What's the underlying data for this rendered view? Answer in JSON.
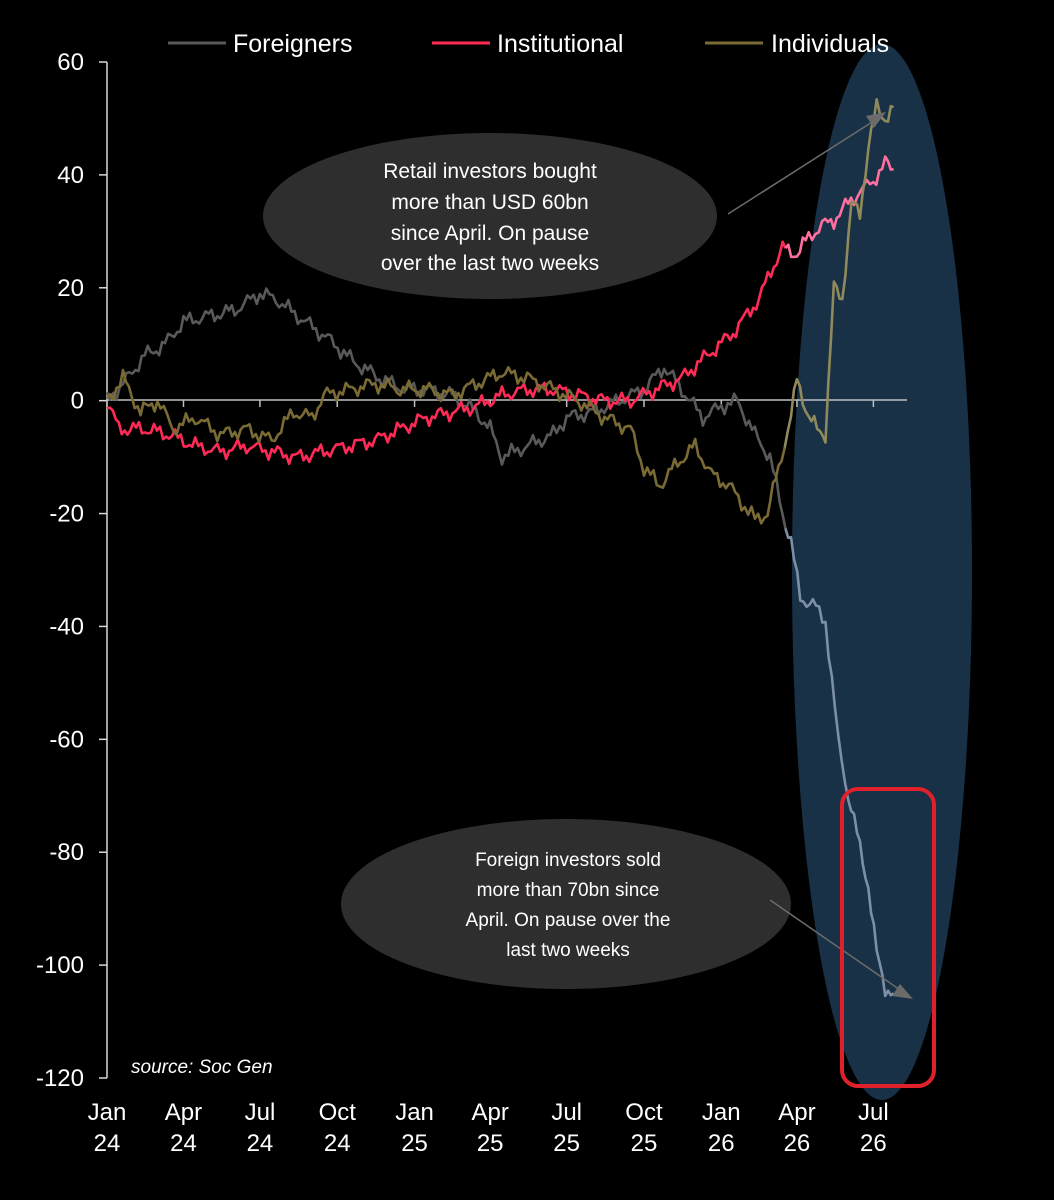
{
  "legend": [
    {
      "label": "Foreigners",
      "color": "#595959"
    },
    {
      "label": "Institutional",
      "color": "#ff2a55"
    },
    {
      "label": "Individuals",
      "color": "#7a6a34"
    }
  ],
  "annotations": {
    "retail": [
      "Retail investors bought",
      "more than USD 60bn",
      "since April. On pause",
      "over the last two weeks"
    ],
    "foreign": [
      "Foreign investors sold",
      "more than 70bn since",
      "April. On pause over the",
      "last two weeks"
    ]
  },
  "source": "source: Soc Gen",
  "colors": {
    "background": "#000000",
    "highlight_ellipse": "#1c3a52",
    "highlight_box": "#e0202a",
    "axis": "#d9d9d9",
    "zero_line": "#bfbfbf",
    "callout": "#2e2e2e"
  },
  "chart_data": {
    "type": "line",
    "x_ticks": [
      {
        "top": "Jan",
        "bottom": "24"
      },
      {
        "top": "Apr",
        "bottom": "24"
      },
      {
        "top": "Jul",
        "bottom": "24"
      },
      {
        "top": "Oct",
        "bottom": "24"
      },
      {
        "top": "Jan",
        "bottom": "25"
      },
      {
        "top": "Apr",
        "bottom": "25"
      },
      {
        "top": "Jul",
        "bottom": "25"
      },
      {
        "top": "Oct",
        "bottom": "25"
      },
      {
        "top": "Jan",
        "bottom": "26"
      },
      {
        "top": "Apr",
        "bottom": "26"
      },
      {
        "top": "Jul",
        "bottom": "26"
      }
    ],
    "y_ticks": [
      60,
      40,
      20,
      0,
      -20,
      -40,
      -60,
      -80,
      -100,
      -120
    ],
    "ylim": [
      -120,
      60
    ],
    "xlim": [
      "2024-01-01",
      "2026-08-10"
    ],
    "grid": false,
    "legend_position": "top",
    "series": [
      {
        "name": "Foreigners",
        "points": [
          [
            "2024-01-01",
            0
          ],
          [
            "2024-01-20",
            3
          ],
          [
            "2024-02-15",
            8
          ],
          [
            "2024-03-10",
            10
          ],
          [
            "2024-04-01",
            14
          ],
          [
            "2024-05-01",
            15
          ],
          [
            "2024-06-01",
            16
          ],
          [
            "2024-07-01",
            19
          ],
          [
            "2024-07-20",
            18
          ],
          [
            "2024-08-15",
            15
          ],
          [
            "2024-09-20",
            11
          ],
          [
            "2024-10-20",
            7
          ],
          [
            "2024-11-20",
            4
          ],
          [
            "2024-12-20",
            2
          ],
          [
            "2025-01-15",
            2
          ],
          [
            "2025-02-15",
            1
          ],
          [
            "2025-03-15",
            -2
          ],
          [
            "2025-04-01",
            -5
          ],
          [
            "2025-04-15",
            -10
          ],
          [
            "2025-05-15",
            -8
          ],
          [
            "2025-06-15",
            -6
          ],
          [
            "2025-07-01",
            -3
          ],
          [
            "2025-08-01",
            -2
          ],
          [
            "2025-09-01",
            0
          ],
          [
            "2025-10-01",
            2
          ],
          [
            "2025-10-25",
            6
          ],
          [
            "2025-11-15",
            2
          ],
          [
            "2025-12-10",
            -3
          ],
          [
            "2026-01-01",
            -1
          ],
          [
            "2026-01-20",
            0
          ],
          [
            "2026-02-10",
            -6
          ],
          [
            "2026-02-28",
            -10
          ],
          [
            "2026-03-15",
            -20
          ],
          [
            "2026-03-25",
            -25
          ],
          [
            "2026-04-05",
            -35
          ],
          [
            "2026-04-20",
            -36
          ],
          [
            "2026-05-05",
            -39
          ],
          [
            "2026-05-20",
            -60
          ],
          [
            "2026-06-01",
            -70
          ],
          [
            "2026-06-15",
            -79
          ],
          [
            "2026-06-25",
            -86
          ],
          [
            "2026-07-05",
            -98
          ],
          [
            "2026-07-15",
            -104
          ],
          [
            "2026-07-25",
            -105
          ]
        ]
      },
      {
        "name": "Institutional",
        "points": [
          [
            "2024-01-01",
            0
          ],
          [
            "2024-01-15",
            -5
          ],
          [
            "2024-02-15",
            -5
          ],
          [
            "2024-03-15",
            -6
          ],
          [
            "2024-04-15",
            -8
          ],
          [
            "2024-05-15",
            -9
          ],
          [
            "2024-06-15",
            -8
          ],
          [
            "2024-07-15",
            -9
          ],
          [
            "2024-08-15",
            -10
          ],
          [
            "2024-09-15",
            -9
          ],
          [
            "2024-10-15",
            -8
          ],
          [
            "2024-11-15",
            -7
          ],
          [
            "2024-12-15",
            -5
          ],
          [
            "2025-01-15",
            -3
          ],
          [
            "2025-02-15",
            -2
          ],
          [
            "2025-03-15",
            -1
          ],
          [
            "2025-04-15",
            1
          ],
          [
            "2025-05-15",
            2
          ],
          [
            "2025-06-15",
            2
          ],
          [
            "2025-07-15",
            1
          ],
          [
            "2025-08-15",
            0
          ],
          [
            "2025-09-15",
            0
          ],
          [
            "2025-10-15",
            2
          ],
          [
            "2025-11-15",
            4
          ],
          [
            "2025-12-15",
            8
          ],
          [
            "2026-01-15",
            12
          ],
          [
            "2026-02-15",
            18
          ],
          [
            "2026-03-01",
            23
          ],
          [
            "2026-03-15",
            27
          ],
          [
            "2026-04-01",
            26
          ],
          [
            "2026-04-15",
            29
          ],
          [
            "2026-05-01",
            31
          ],
          [
            "2026-05-15",
            32
          ],
          [
            "2026-06-01",
            35
          ],
          [
            "2026-06-15",
            37
          ],
          [
            "2026-07-01",
            39
          ],
          [
            "2026-07-15",
            42
          ],
          [
            "2026-07-25",
            41
          ]
        ]
      },
      {
        "name": "Individuals",
        "points": [
          [
            "2024-01-01",
            0
          ],
          [
            "2024-01-20",
            4
          ],
          [
            "2024-02-10",
            -2
          ],
          [
            "2024-03-01",
            0
          ],
          [
            "2024-03-20",
            -5
          ],
          [
            "2024-04-15",
            -3
          ],
          [
            "2024-05-15",
            -6
          ],
          [
            "2024-06-15",
            -5
          ],
          [
            "2024-07-15",
            -7
          ],
          [
            "2024-08-10",
            -2
          ],
          [
            "2024-09-01",
            -3
          ],
          [
            "2024-09-15",
            1
          ],
          [
            "2024-10-15",
            2
          ],
          [
            "2024-11-15",
            3
          ],
          [
            "2024-12-15",
            2
          ],
          [
            "2025-01-15",
            2
          ],
          [
            "2025-02-15",
            1
          ],
          [
            "2025-03-15",
            3
          ],
          [
            "2025-04-15",
            5
          ],
          [
            "2025-05-15",
            4
          ],
          [
            "2025-06-15",
            2
          ],
          [
            "2025-07-15",
            0
          ],
          [
            "2025-08-15",
            -3
          ],
          [
            "2025-09-15",
            -5
          ],
          [
            "2025-10-01",
            -12
          ],
          [
            "2025-10-20",
            -15
          ],
          [
            "2025-11-10",
            -11
          ],
          [
            "2025-12-01",
            -8
          ],
          [
            "2025-12-20",
            -13
          ],
          [
            "2026-01-10",
            -15
          ],
          [
            "2026-01-25",
            -18
          ],
          [
            "2026-02-10",
            -21
          ],
          [
            "2026-02-25",
            -20
          ],
          [
            "2026-03-10",
            -12
          ],
          [
            "2026-03-25",
            -3
          ],
          [
            "2026-04-01",
            4
          ],
          [
            "2026-04-15",
            -3
          ],
          [
            "2026-04-25",
            -5
          ],
          [
            "2026-05-05",
            -6
          ],
          [
            "2026-05-15",
            20
          ],
          [
            "2026-05-25",
            18
          ],
          [
            "2026-06-05",
            35
          ],
          [
            "2026-06-15",
            33
          ],
          [
            "2026-06-25",
            45
          ],
          [
            "2026-07-05",
            52
          ],
          [
            "2026-07-15",
            50
          ],
          [
            "2026-07-25",
            52
          ]
        ]
      }
    ]
  }
}
